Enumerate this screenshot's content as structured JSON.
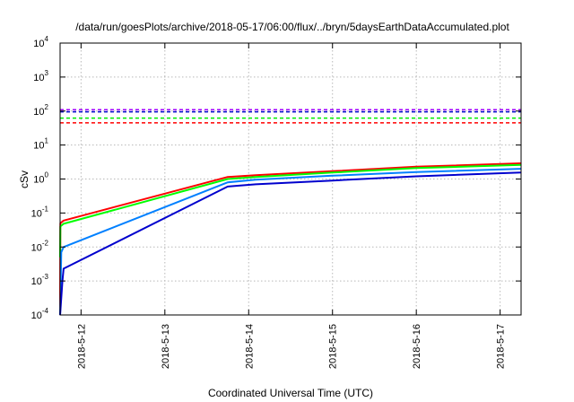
{
  "chart_data": {
    "type": "line",
    "title": "/data/run/goesPlots/archive/2018-05-17/06:00/flux/../bryn/5daysEarthDataAccumulated.plot",
    "xlabel": "Coordinated Universal Time (UTC)",
    "ylabel": "cSv",
    "y_scale": "log",
    "ylim": [
      0.0001,
      10000
    ],
    "xlim": [
      "2018-05-11T18:00",
      "2018-05-17T06:00"
    ],
    "y_ticks": [
      {
        "value": 0.0001,
        "mant": "10",
        "exp": "-4"
      },
      {
        "value": 0.001,
        "mant": "10",
        "exp": "-3"
      },
      {
        "value": 0.01,
        "mant": "10",
        "exp": "-2"
      },
      {
        "value": 0.1,
        "mant": "10",
        "exp": "-1"
      },
      {
        "value": 1,
        "mant": "10",
        "exp": "0"
      },
      {
        "value": 10,
        "mant": "10",
        "exp": "1"
      },
      {
        "value": 100,
        "mant": "10",
        "exp": "2"
      },
      {
        "value": 1000,
        "mant": "10",
        "exp": "3"
      },
      {
        "value": 10000,
        "mant": "10",
        "exp": "4"
      }
    ],
    "x_ticks": [
      {
        "value": "2018-05-12T00:00",
        "label": "2018-5-12"
      },
      {
        "value": "2018-05-13T00:00",
        "label": "2018-5-13"
      },
      {
        "value": "2018-05-14T00:00",
        "label": "2018-5-14"
      },
      {
        "value": "2018-05-15T00:00",
        "label": "2018-5-15"
      },
      {
        "value": "2018-05-16T00:00",
        "label": "2018-5-16"
      },
      {
        "value": "2018-05-17T00:00",
        "label": "2018-5-17"
      }
    ],
    "grid": true,
    "legend": "none",
    "series": [
      {
        "color": "#ff0000",
        "style": "solid",
        "points": [
          [
            "2018-05-11T18:00",
            0.0001
          ],
          [
            "2018-05-11T18:05",
            0.05
          ],
          [
            "2018-05-11T19:00",
            0.06
          ],
          [
            "2018-05-13T18:00",
            1.15
          ],
          [
            "2018-05-14T02:00",
            1.3
          ],
          [
            "2018-05-15T00:00",
            1.7
          ],
          [
            "2018-05-16T00:00",
            2.3
          ],
          [
            "2018-05-17T06:00",
            2.9
          ]
        ]
      },
      {
        "color": "#00ff00",
        "style": "solid",
        "points": [
          [
            "2018-05-11T18:00",
            0.005
          ],
          [
            "2018-05-11T18:05",
            0.04
          ],
          [
            "2018-05-11T19:00",
            0.048
          ],
          [
            "2018-05-13T18:00",
            1.0
          ],
          [
            "2018-05-14T02:00",
            1.15
          ],
          [
            "2018-05-15T00:00",
            1.55
          ],
          [
            "2018-05-16T00:00",
            2.1
          ],
          [
            "2018-05-17T06:00",
            2.6
          ]
        ]
      },
      {
        "color": "#0080ff",
        "style": "solid",
        "points": [
          [
            "2018-05-11T18:00",
            0.0001
          ],
          [
            "2018-05-11T18:20",
            0.007
          ],
          [
            "2018-05-11T19:00",
            0.01
          ],
          [
            "2018-05-13T18:00",
            0.8
          ],
          [
            "2018-05-14T02:00",
            0.95
          ],
          [
            "2018-05-15T00:00",
            1.25
          ],
          [
            "2018-05-16T00:00",
            1.6
          ],
          [
            "2018-05-17T06:00",
            2.0
          ]
        ]
      },
      {
        "color": "#0000cd",
        "style": "solid",
        "points": [
          [
            "2018-05-11T18:00",
            0.0001
          ],
          [
            "2018-05-11T18:40",
            0.001
          ],
          [
            "2018-05-11T19:00",
            0.0023
          ],
          [
            "2018-05-13T18:00",
            0.6
          ],
          [
            "2018-05-14T02:00",
            0.7
          ],
          [
            "2018-05-15T00:00",
            0.9
          ],
          [
            "2018-05-16T00:00",
            1.2
          ],
          [
            "2018-05-17T06:00",
            1.55
          ]
        ]
      },
      {
        "color": "#a000ff",
        "style": "dashed",
        "points": [
          [
            "2018-05-11T18:00",
            110
          ],
          [
            "2018-05-17T06:00",
            110
          ]
        ]
      },
      {
        "color": "#0000cd",
        "style": "dashed",
        "points": [
          [
            "2018-05-11T18:00",
            95
          ],
          [
            "2018-05-17T06:00",
            95
          ]
        ]
      },
      {
        "color": "#00ee00",
        "style": "dashed",
        "points": [
          [
            "2018-05-11T18:00",
            62
          ],
          [
            "2018-05-17T06:00",
            62
          ]
        ]
      },
      {
        "color": "#ff0000",
        "style": "dashed",
        "points": [
          [
            "2018-05-11T18:00",
            45
          ],
          [
            "2018-05-17T06:00",
            45
          ]
        ]
      }
    ]
  }
}
